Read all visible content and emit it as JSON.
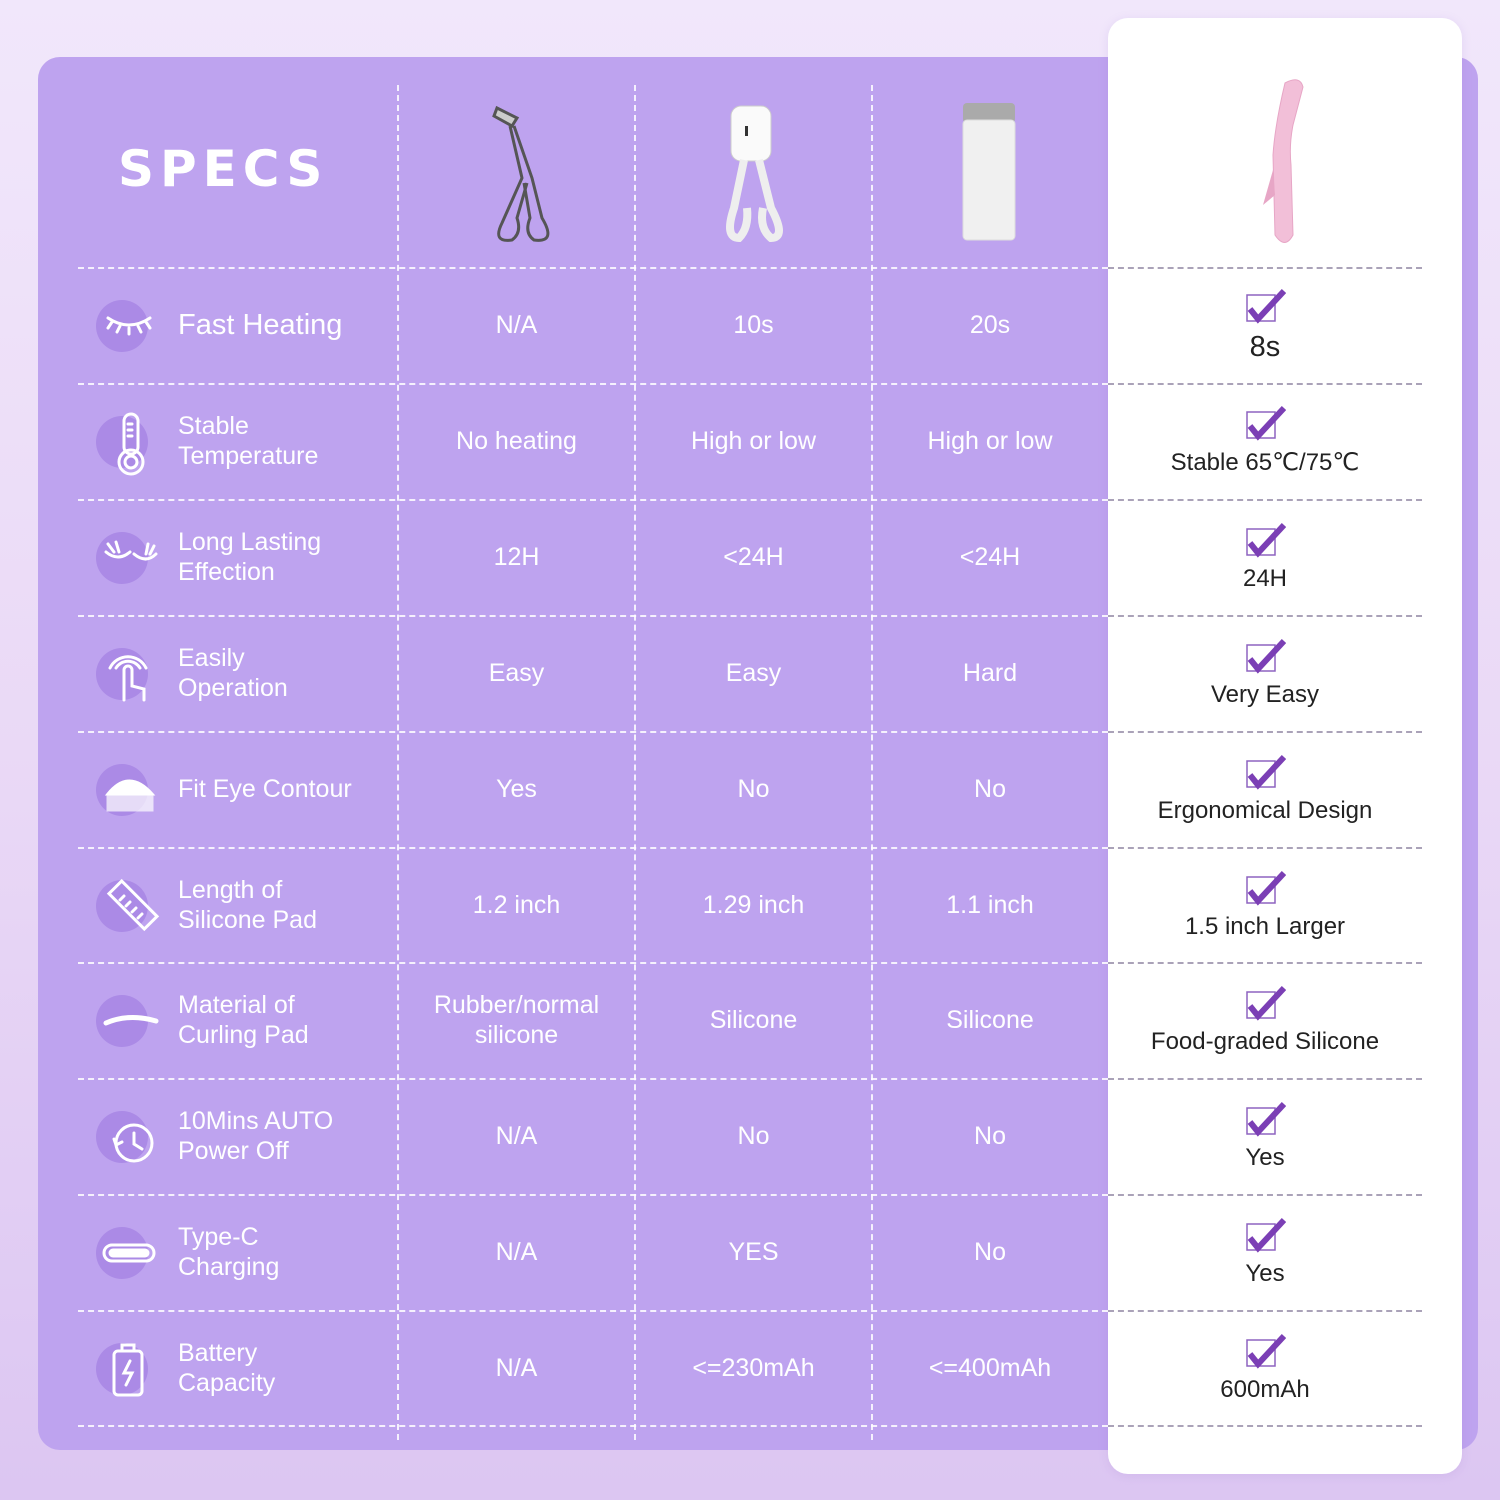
{
  "title": "SPECS",
  "products": [
    "basic-metal-curler",
    "heated-scissor-curler",
    "heated-pen-curler",
    "pink-heated-curler"
  ],
  "colors": {
    "panel": "#bea3ef",
    "accent": "#7b3fb5",
    "card": "#ffffff"
  },
  "rows": [
    {
      "label": "Fast Heating",
      "icon": "eyelash-icon",
      "values": [
        "N/A",
        "10s",
        "20s"
      ],
      "ours": "8s"
    },
    {
      "label": "Stable Temperature",
      "icon": "thermometer-icon",
      "values": [
        "No heating",
        "High or low",
        "High or low"
      ],
      "ours": "Stable 65℃/75℃"
    },
    {
      "label": "Long Lasting Effection",
      "icon": "lashes-icon",
      "values": [
        "12H",
        "<24H",
        "<24H"
      ],
      "ours": "24H"
    },
    {
      "label": "Easily Operation",
      "icon": "touch-hand-icon",
      "values": [
        "Easy",
        "Easy",
        "Hard"
      ],
      "ours": "Very Easy"
    },
    {
      "label": "Fit Eye Contour",
      "icon": "eye-contour-icon",
      "values": [
        "Yes",
        "No",
        "No"
      ],
      "ours": "Ergonomical Design"
    },
    {
      "label": "Length of Silicone Pad",
      "icon": "ruler-icon",
      "values": [
        "1.2 inch",
        "1.29 inch",
        "1.1 inch"
      ],
      "ours": "1.5 inch Larger"
    },
    {
      "label": "Material of Curling Pad",
      "icon": "curve-pad-icon",
      "values": [
        "Rubber/normal silicone",
        "Silicone",
        "Silicone"
      ],
      "ours": "Food-graded Silicone"
    },
    {
      "label": "10Mins AUTO Power Off",
      "icon": "clock-icon",
      "values": [
        "N/A",
        "No",
        "No"
      ],
      "ours": "Yes"
    },
    {
      "label": "Type-C Charging",
      "icon": "usb-c-icon",
      "values": [
        "N/A",
        "YES",
        "No"
      ],
      "ours": "Yes"
    },
    {
      "label": "Battery Capacity",
      "icon": "battery-icon",
      "values": [
        "N/A",
        "<=230mAh",
        "<=400mAh"
      ],
      "ours": "600mAh"
    }
  ]
}
